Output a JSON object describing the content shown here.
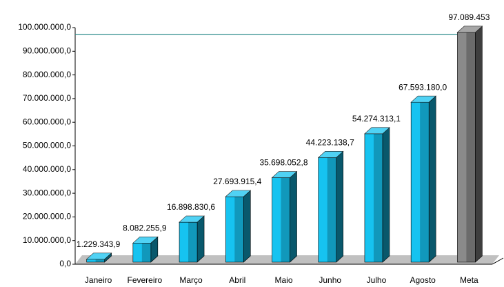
{
  "chart_data": {
    "type": "bar3d",
    "categories": [
      "Janeiro",
      "Fevereiro",
      "Março",
      "Abril",
      "Maio",
      "Junho",
      "Julho",
      "Agosto",
      "Meta"
    ],
    "values": [
      1229343.9,
      8082255.9,
      16898830.6,
      27693915.4,
      35698052.8,
      44223138.7,
      54274313.1,
      67593180.0,
      97089453
    ],
    "value_labels": [
      "1.229.343,9",
      "8.082.255,9",
      "16.898.830,6",
      "27.693.915,4",
      "35.698.052,8",
      "44.223.138,7",
      "54.274.313,1",
      "67.593.180,0",
      "97.089.453"
    ],
    "colors": [
      "#16c3f0",
      "#16c3f0",
      "#16c3f0",
      "#16c3f0",
      "#16c3f0",
      "#16c3f0",
      "#16c3f0",
      "#16c3f0",
      "#8a8a8a"
    ],
    "target_line_color": "#2a8a8a",
    "ylim": [
      0,
      100000000
    ],
    "yticks": [
      {
        "value": 0,
        "label": "0,0"
      },
      {
        "value": 10000000,
        "label": "10.000.000,0"
      },
      {
        "value": 20000000,
        "label": "20.000.000,0"
      },
      {
        "value": 30000000,
        "label": "30.000.000,0"
      },
      {
        "value": 40000000,
        "label": "40.000.000,0"
      },
      {
        "value": 50000000,
        "label": "50.000.000,0"
      },
      {
        "value": 60000000,
        "label": "60.000.000,0"
      },
      {
        "value": 70000000,
        "label": "70.000.000,0"
      },
      {
        "value": 80000000,
        "label": "80.000.000,0"
      },
      {
        "value": 90000000,
        "label": "90.000.000,0"
      },
      {
        "value": 100000000,
        "label": "100.000.000,0"
      }
    ]
  }
}
